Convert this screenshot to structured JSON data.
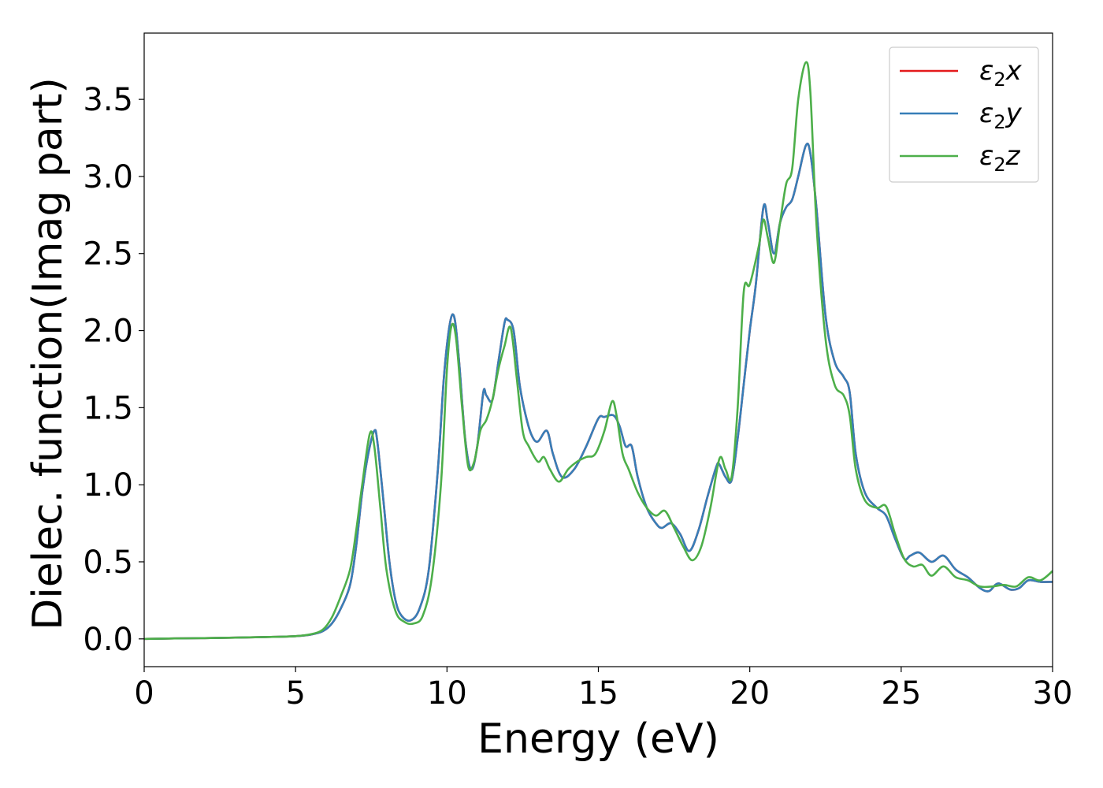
{
  "chart_data": {
    "type": "line",
    "title": "",
    "xlabel": "Energy (eV)",
    "ylabel": "Dielec. function(Imag part)",
    "xlim": [
      0,
      30
    ],
    "ylim": [
      -0.18,
      3.93
    ],
    "xticks": [
      0,
      5,
      10,
      15,
      20,
      25,
      30
    ],
    "xtick_labels": [
      "0",
      "5",
      "10",
      "15",
      "20",
      "25",
      "30"
    ],
    "yticks": [
      0.0,
      0.5,
      1.0,
      1.5,
      2.0,
      2.5,
      3.0,
      3.5
    ],
    "ytick_labels": [
      "0.0",
      "0.5",
      "1.0",
      "1.5",
      "2.0",
      "2.5",
      "3.0",
      "3.5"
    ],
    "grid": false,
    "legend_position": "top-right",
    "legend": [
      {
        "symbol": "ε",
        "sub": "2",
        "axis": "x",
        "color": "#e41a1c"
      },
      {
        "symbol": "ε",
        "sub": "2",
        "axis": "y",
        "color": "#377eb8"
      },
      {
        "symbol": "ε",
        "sub": "2",
        "axis": "z",
        "color": "#4daf4a"
      }
    ],
    "series": [
      {
        "color": "#e41a1c",
        "x": [
          0,
          1,
          2,
          3,
          4,
          5,
          5.5,
          5.9,
          6.2,
          6.5,
          6.8,
          7.0,
          7.2,
          7.4,
          7.6,
          7.7,
          7.9,
          8.1,
          8.3,
          8.5,
          8.8,
          9.1,
          9.4,
          9.7,
          9.9,
          10.1,
          10.25,
          10.4,
          10.6,
          10.8,
          11.0,
          11.2,
          11.3,
          11.5,
          11.7,
          11.9,
          12.0,
          12.2,
          12.4,
          12.6,
          12.8,
          13.0,
          13.3,
          13.5,
          13.8,
          14.2,
          14.6,
          15.0,
          15.2,
          15.5,
          15.7,
          15.9,
          16.1,
          16.3,
          16.6,
          16.9,
          17.1,
          17.4,
          17.7,
          18.0,
          18.3,
          18.6,
          18.9,
          19.0,
          19.2,
          19.4,
          19.6,
          19.8,
          20.0,
          20.2,
          20.45,
          20.6,
          20.8,
          21.0,
          21.2,
          21.4,
          21.6,
          21.85,
          22.0,
          22.2,
          22.5,
          22.8,
          23.1,
          23.3,
          23.5,
          23.8,
          24.2,
          24.5,
          24.8,
          25.1,
          25.3,
          25.6,
          26.0,
          26.4,
          26.8,
          27.2,
          27.6,
          27.9,
          28.2,
          28.6,
          28.9,
          29.2,
          29.6,
          30.0
        ],
        "y": [
          0.0,
          0.003,
          0.005,
          0.008,
          0.012,
          0.018,
          0.028,
          0.05,
          0.1,
          0.2,
          0.35,
          0.6,
          0.95,
          1.2,
          1.35,
          1.28,
          0.9,
          0.5,
          0.25,
          0.15,
          0.12,
          0.2,
          0.45,
          1.1,
          1.7,
          2.05,
          2.08,
          1.8,
          1.3,
          1.1,
          1.25,
          1.6,
          1.58,
          1.55,
          1.8,
          2.05,
          2.07,
          2.0,
          1.65,
          1.45,
          1.32,
          1.28,
          1.35,
          1.2,
          1.05,
          1.1,
          1.25,
          1.43,
          1.44,
          1.45,
          1.38,
          1.25,
          1.25,
          1.05,
          0.85,
          0.75,
          0.72,
          0.75,
          0.68,
          0.57,
          0.7,
          0.92,
          1.12,
          1.13,
          1.05,
          1.03,
          1.3,
          1.65,
          2.0,
          2.3,
          2.8,
          2.7,
          2.5,
          2.7,
          2.8,
          2.85,
          3.0,
          3.2,
          3.15,
          2.8,
          2.1,
          1.8,
          1.7,
          1.6,
          1.2,
          0.95,
          0.85,
          0.8,
          0.65,
          0.52,
          0.54,
          0.56,
          0.5,
          0.54,
          0.45,
          0.4,
          0.33,
          0.31,
          0.36,
          0.32,
          0.33,
          0.38,
          0.37,
          0.37
        ]
      },
      {
        "color": "#377eb8",
        "x": [
          0,
          1,
          2,
          3,
          4,
          5,
          5.5,
          5.9,
          6.2,
          6.5,
          6.8,
          7.0,
          7.2,
          7.4,
          7.6,
          7.7,
          7.9,
          8.1,
          8.3,
          8.5,
          8.8,
          9.1,
          9.4,
          9.7,
          9.9,
          10.1,
          10.25,
          10.4,
          10.6,
          10.8,
          11.0,
          11.2,
          11.3,
          11.5,
          11.7,
          11.9,
          12.0,
          12.2,
          12.4,
          12.6,
          12.8,
          13.0,
          13.3,
          13.5,
          13.8,
          14.2,
          14.6,
          15.0,
          15.2,
          15.5,
          15.7,
          15.9,
          16.1,
          16.3,
          16.6,
          16.9,
          17.1,
          17.4,
          17.7,
          18.0,
          18.3,
          18.6,
          18.9,
          19.0,
          19.2,
          19.4,
          19.6,
          19.8,
          20.0,
          20.2,
          20.45,
          20.6,
          20.8,
          21.0,
          21.2,
          21.4,
          21.6,
          21.85,
          22.0,
          22.2,
          22.5,
          22.8,
          23.1,
          23.3,
          23.5,
          23.8,
          24.2,
          24.5,
          24.8,
          25.1,
          25.3,
          25.6,
          26.0,
          26.4,
          26.8,
          27.2,
          27.6,
          27.9,
          28.2,
          28.6,
          28.9,
          29.2,
          29.6,
          30.0
        ],
        "y": [
          0.0,
          0.003,
          0.005,
          0.008,
          0.012,
          0.018,
          0.028,
          0.05,
          0.1,
          0.2,
          0.35,
          0.6,
          0.95,
          1.2,
          1.35,
          1.28,
          0.9,
          0.5,
          0.25,
          0.15,
          0.12,
          0.2,
          0.45,
          1.1,
          1.7,
          2.05,
          2.08,
          1.8,
          1.3,
          1.1,
          1.25,
          1.6,
          1.58,
          1.55,
          1.8,
          2.05,
          2.07,
          2.0,
          1.65,
          1.45,
          1.32,
          1.28,
          1.35,
          1.2,
          1.05,
          1.1,
          1.25,
          1.43,
          1.44,
          1.45,
          1.38,
          1.25,
          1.25,
          1.05,
          0.85,
          0.75,
          0.72,
          0.75,
          0.68,
          0.57,
          0.7,
          0.92,
          1.12,
          1.13,
          1.05,
          1.03,
          1.3,
          1.65,
          2.0,
          2.3,
          2.8,
          2.7,
          2.5,
          2.7,
          2.8,
          2.85,
          3.0,
          3.2,
          3.15,
          2.8,
          2.1,
          1.8,
          1.7,
          1.6,
          1.2,
          0.95,
          0.85,
          0.8,
          0.65,
          0.52,
          0.54,
          0.56,
          0.5,
          0.54,
          0.45,
          0.4,
          0.33,
          0.31,
          0.36,
          0.32,
          0.33,
          0.38,
          0.37,
          0.37
        ]
      },
      {
        "color": "#4daf4a",
        "x": [
          0,
          1,
          2,
          3,
          4,
          5,
          5.5,
          5.9,
          6.2,
          6.5,
          6.8,
          7.0,
          7.2,
          7.45,
          7.6,
          7.8,
          8.0,
          8.3,
          8.6,
          8.9,
          9.2,
          9.5,
          9.8,
          10.0,
          10.15,
          10.3,
          10.5,
          10.7,
          10.9,
          11.1,
          11.3,
          11.5,
          11.7,
          11.9,
          12.1,
          12.3,
          12.5,
          12.7,
          13.0,
          13.2,
          13.4,
          13.7,
          14.0,
          14.3,
          14.6,
          14.9,
          15.2,
          15.45,
          15.6,
          15.8,
          16.0,
          16.3,
          16.6,
          16.9,
          17.2,
          17.5,
          17.8,
          18.1,
          18.4,
          18.7,
          19.0,
          19.2,
          19.4,
          19.6,
          19.8,
          20.0,
          20.3,
          20.45,
          20.6,
          20.8,
          21.0,
          21.2,
          21.4,
          21.6,
          21.85,
          22.0,
          22.2,
          22.5,
          22.8,
          23.1,
          23.3,
          23.5,
          23.8,
          24.2,
          24.5,
          24.8,
          25.1,
          25.4,
          25.7,
          26.0,
          26.4,
          26.8,
          27.2,
          27.6,
          28.0,
          28.4,
          28.8,
          29.2,
          29.6,
          30.0
        ],
        "y": [
          0.0,
          0.003,
          0.005,
          0.008,
          0.012,
          0.018,
          0.03,
          0.06,
          0.14,
          0.28,
          0.45,
          0.7,
          1.0,
          1.33,
          1.25,
          0.85,
          0.45,
          0.18,
          0.11,
          0.1,
          0.15,
          0.4,
          1.0,
          1.75,
          2.03,
          1.95,
          1.5,
          1.12,
          1.15,
          1.35,
          1.42,
          1.55,
          1.75,
          1.9,
          2.02,
          1.7,
          1.35,
          1.25,
          1.15,
          1.18,
          1.1,
          1.02,
          1.1,
          1.15,
          1.18,
          1.2,
          1.35,
          1.54,
          1.45,
          1.2,
          1.1,
          0.95,
          0.85,
          0.8,
          0.83,
          0.72,
          0.6,
          0.51,
          0.6,
          0.85,
          1.17,
          1.1,
          1.05,
          1.5,
          2.25,
          2.3,
          2.55,
          2.72,
          2.6,
          2.44,
          2.7,
          2.95,
          3.05,
          3.5,
          3.74,
          3.55,
          2.7,
          1.95,
          1.65,
          1.58,
          1.45,
          1.1,
          0.9,
          0.85,
          0.86,
          0.68,
          0.52,
          0.47,
          0.48,
          0.41,
          0.47,
          0.4,
          0.38,
          0.34,
          0.34,
          0.35,
          0.34,
          0.4,
          0.38,
          0.44
        ]
      }
    ]
  }
}
